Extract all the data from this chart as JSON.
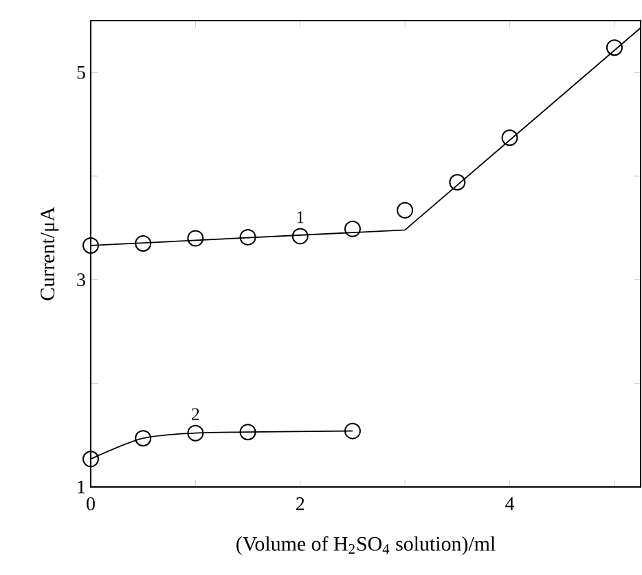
{
  "chart_data": {
    "type": "scatter",
    "xlabel": "(Volume of H$_{2}$SO$_{4}$ solution)/ml",
    "ylabel": "Current/μA",
    "xlim": [
      0,
      5.25
    ],
    "ylim": [
      1,
      5.5
    ],
    "xticks": [
      0,
      {
        "value": 1,
        "label": null
      },
      2,
      {
        "value": 3,
        "label": null
      },
      4,
      {
        "value": 5,
        "label": null
      }
    ],
    "yticks": [
      1,
      {
        "value": 2,
        "label": null
      },
      3,
      {
        "value": 4,
        "label": null
      },
      5
    ],
    "marker": "circle",
    "series": [
      {
        "type": "line",
        "marker": "none",
        "color": "#000000",
        "x": [
          0,
          3,
          5.25
        ],
        "values": [
          3.33,
          3.48,
          5.43
        ]
      },
      {
        "name": "1",
        "color": "#000000",
        "x": [
          0,
          0.5,
          1,
          1.5,
          2,
          2.5,
          3,
          3.5,
          4,
          5
        ],
        "values": [
          3.33,
          3.35,
          3.4,
          3.41,
          3.42,
          3.49,
          3.67,
          3.94,
          4.37,
          5.24
        ]
      },
      {
        "type": "line",
        "marker": "none",
        "color": "#000000",
        "x": [
          0,
          0.5,
          1,
          1.5,
          2.5
        ],
        "values": [
          1.27,
          1.47,
          1.52,
          1.53,
          1.54
        ]
      },
      {
        "name": "2",
        "color": "#000000",
        "x": [
          0,
          0.5,
          1,
          1.5,
          2.5
        ],
        "values": [
          1.27,
          1.47,
          1.52,
          1.53,
          1.54
        ]
      }
    ]
  }
}
